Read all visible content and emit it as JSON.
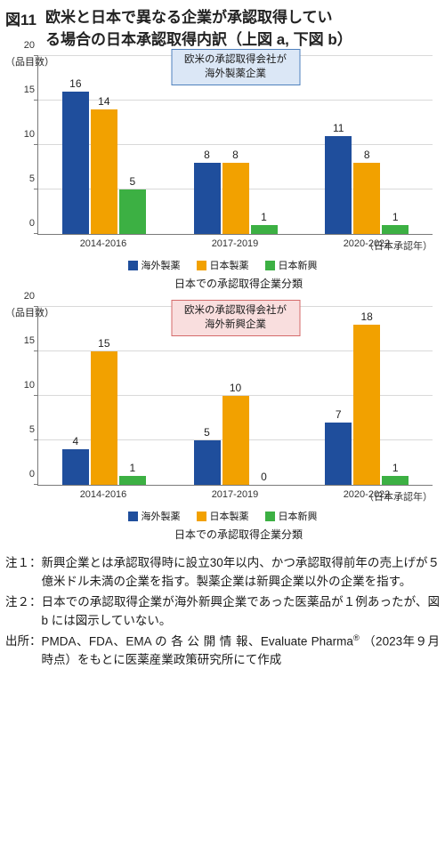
{
  "figure": {
    "number": "図11",
    "title_line1": "欧米と日本で異なる企業が承認取得してい",
    "title_line2": "る場合の日本承認取得内訳（上図 a, 下図 b）"
  },
  "colors": {
    "series1": "#1f4e9c",
    "series2": "#f2a100",
    "series3": "#3cb043",
    "axis": "#7a7a7a",
    "grid": "#d9d9d9",
    "box_a_border": "#4f81bd",
    "box_a_bg": "#dbe7f6",
    "box_b_border": "#d46a6a",
    "box_b_bg": "#f9dede"
  },
  "axis": {
    "ylabel": "（品目数）",
    "ymax": 20,
    "yticks": [
      0,
      5,
      10,
      15,
      20
    ],
    "xaxis_title": "日本での承認取得企業分類",
    "xnote": "（日本承認年）"
  },
  "legend": {
    "s1": "海外製薬",
    "s2": "日本製薬",
    "s3": "日本新興"
  },
  "chart_a": {
    "box_line1": "欧米の承認取得会社が",
    "box_line2": "海外製薬企業",
    "categories": [
      "2014-2016",
      "2017-2019",
      "2020-2022"
    ],
    "series1": [
      16,
      8,
      11
    ],
    "series2": [
      14,
      8,
      8
    ],
    "series3": [
      5,
      1,
      1
    ]
  },
  "chart_b": {
    "box_line1": "欧米の承認取得会社が",
    "box_line2": "海外新興企業",
    "categories": [
      "2014-2016",
      "2017-2019",
      "2020-2022"
    ],
    "series1": [
      4,
      5,
      7
    ],
    "series2": [
      15,
      10,
      18
    ],
    "series3": [
      1,
      0,
      1
    ]
  },
  "notes": {
    "n1_label": "注１：",
    "n1_body": "新興企業とは承認取得時に設立30年以内、かつ承認取得前年の売上げが５億米ドル未満の企業を指す。製薬企業は新興企業以外の企業を指す。",
    "n2_label": "注２：",
    "n2_body": "日本での承認取得企業が海外新興企業であった医薬品が１例あったが、図 b には図示していない。",
    "src_label": "出所：",
    "src_body_1": "PMDA、FDA、EMA の 各 公 開 情 報、Evaluate Pharma",
    "src_body_2": "（2023年９月時点）をもとに医薬産業政策研究所にて作成"
  }
}
